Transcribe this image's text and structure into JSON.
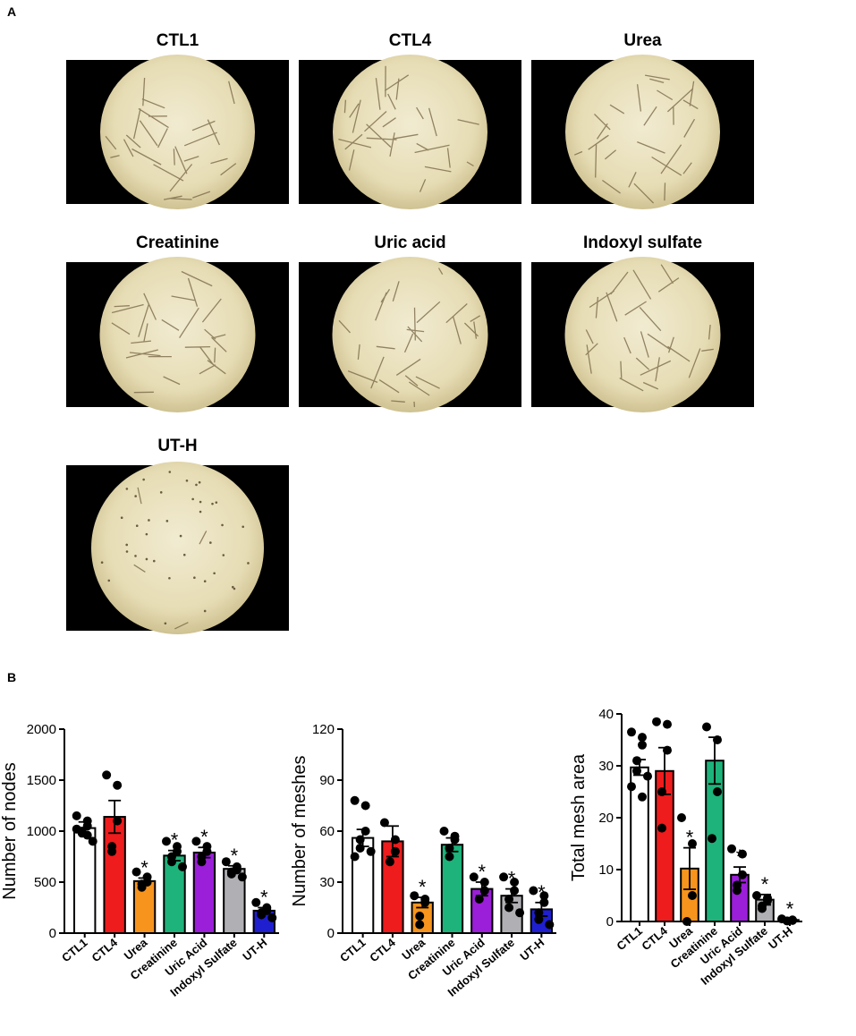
{
  "panel_a": {
    "label": "A",
    "images": [
      {
        "title": "CTL1"
      },
      {
        "title": "CTL4"
      },
      {
        "title": "Urea"
      },
      {
        "title": "Creatinine"
      },
      {
        "title": "Uric acid"
      },
      {
        "title": "Indoxyl sulfate"
      },
      {
        "title": "UT-H"
      }
    ]
  },
  "panel_b": {
    "label": "B"
  },
  "chart_data": [
    {
      "type": "bar",
      "y_label": "Number of nodes",
      "categories": [
        "CTL1",
        "CTL4",
        "Urea",
        "Creatinine",
        "Uric Acid",
        "Indoxyl Sulfate",
        "UT-H"
      ],
      "colors": [
        "#ffffff",
        "#ee1c1c",
        "#f7941d",
        "#1db37a",
        "#9b1ed8",
        "#b0b0b4",
        "#1f1fd0"
      ],
      "values": [
        1030,
        1140,
        510,
        760,
        790,
        630,
        220
      ],
      "errors": [
        60,
        160,
        30,
        50,
        50,
        30,
        30
      ],
      "points": [
        [
          1150,
          1100,
          1050,
          1000,
          980,
          900,
          1020,
          960
        ],
        [
          1550,
          1450,
          1100,
          850,
          800
        ],
        [
          600,
          550,
          500,
          480,
          450
        ],
        [
          900,
          850,
          800,
          750,
          700,
          650
        ],
        [
          900,
          850,
          800,
          750,
          700
        ],
        [
          700,
          650,
          620,
          600,
          580,
          550
        ],
        [
          300,
          250,
          220,
          200,
          180,
          150
        ]
      ],
      "significance": [
        null,
        null,
        "*",
        "*",
        "*",
        "*",
        "*"
      ],
      "ylim": [
        0,
        2000
      ],
      "yticks": [
        0,
        500,
        1000,
        1500,
        2000
      ]
    },
    {
      "type": "bar",
      "y_label": "Number of meshes",
      "categories": [
        "CTL1",
        "CTL4",
        "Urea",
        "Creatinine",
        "Uric Acid",
        "Indoxyl Sulfate",
        "UT-H"
      ],
      "colors": [
        "#ffffff",
        "#ee1c1c",
        "#f7941d",
        "#1db37a",
        "#9b1ed8",
        "#b0b0b4",
        "#1f1fd0"
      ],
      "values": [
        56,
        54,
        18,
        52,
        26,
        22,
        14
      ],
      "errors": [
        5,
        9,
        3,
        4,
        4,
        4,
        4
      ],
      "points": [
        [
          78,
          75,
          60,
          55,
          50,
          48,
          45
        ],
        [
          65,
          55,
          48,
          42
        ],
        [
          22,
          20,
          18,
          10,
          5
        ],
        [
          60,
          57,
          55,
          50,
          45
        ],
        [
          33,
          30,
          25,
          20
        ],
        [
          33,
          30,
          25,
          20,
          15,
          12
        ],
        [
          25,
          22,
          18,
          12,
          8,
          5
        ]
      ],
      "significance": [
        null,
        null,
        "*",
        null,
        "*",
        "*",
        "*"
      ],
      "ylim": [
        0,
        120
      ],
      "yticks": [
        0,
        30,
        60,
        90,
        120
      ]
    },
    {
      "type": "bar",
      "y_label": "Total mesh area",
      "categories": [
        "CTL1",
        "CTL4",
        "Urea",
        "Creatinine",
        "Uric Acid",
        "Indoxyl Sulfate",
        "UT-H"
      ],
      "colors": [
        "#ffffff",
        "#ee1c1c",
        "#f7941d",
        "#1db37a",
        "#9b1ed8",
        "#b0b0b4",
        "#1f1fd0"
      ],
      "values": [
        29.7,
        29,
        10.2,
        31,
        9,
        4.2,
        0.3
      ],
      "errors": [
        1.5,
        4.5,
        4,
        4.5,
        1.5,
        1,
        0.1
      ],
      "points": [
        [
          36.5,
          35.5,
          34,
          31,
          29,
          28,
          26,
          24
        ],
        [
          38.5,
          38,
          33,
          25,
          18
        ],
        [
          20,
          15,
          5,
          0
        ],
        [
          37.5,
          35,
          25,
          16
        ],
        [
          14,
          13,
          9,
          7,
          6
        ],
        [
          5,
          4.5,
          4,
          3,
          2.5
        ],
        [
          0.5,
          0.3,
          0.2,
          0.1
        ]
      ],
      "significance": [
        null,
        null,
        "*",
        null,
        "*",
        "*",
        "*"
      ],
      "ylim": [
        0,
        40
      ],
      "yticks": [
        0,
        10,
        20,
        30,
        40
      ]
    }
  ]
}
